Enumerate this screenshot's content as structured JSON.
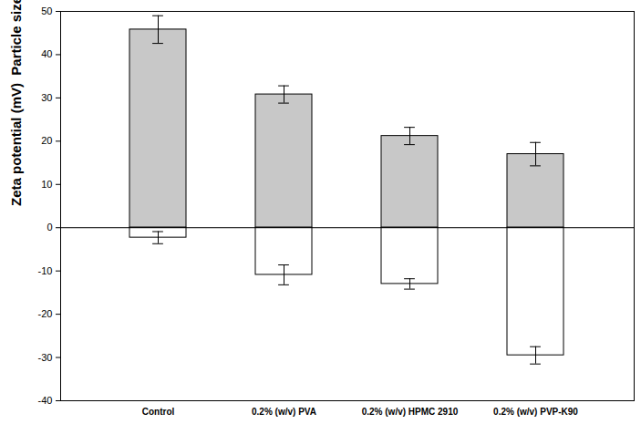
{
  "chart_data": {
    "type": "bar",
    "categories": [
      "Control",
      "0.2% (w/v) PVA",
      "0.2% (w/v) HPMC 2910",
      "0.2% (w/v) PVP-K90"
    ],
    "y_label": "Zeta potential (mV)  Particle size (μm, radius)",
    "series": [
      {
        "color": "#c8c8c8",
        "values": [
          45.8,
          30.8,
          21.2,
          17.0
        ],
        "errors": [
          3.2,
          2.0,
          2.0,
          2.7
        ]
      },
      {
        "color": "#ffffff",
        "values": [
          -2.3,
          -10.9,
          -13.0,
          -29.5
        ],
        "errors": [
          1.4,
          2.3,
          1.2,
          2.0
        ]
      }
    ],
    "ylim": [
      -40,
      50
    ],
    "yticks": [
      -40,
      -30,
      -20,
      -10,
      0,
      10,
      20,
      30,
      40,
      50
    ],
    "grid": false
  }
}
